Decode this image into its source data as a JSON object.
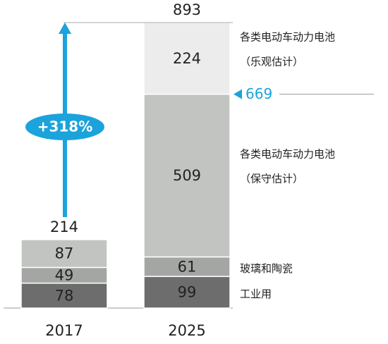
{
  "chart_data": {
    "type": "stacked-bar",
    "categories": [
      "2017",
      "2025"
    ],
    "series": [
      {
        "name": "工业用",
        "color": "#6d6d6d",
        "values": [
          78,
          99
        ]
      },
      {
        "name": "玻璃和陶瓷",
        "color": "#a3a6a3",
        "values": [
          49,
          61
        ]
      },
      {
        "name": "各类电动车动力电池",
        "note": "（保守估计）",
        "color": "#c1c4c1",
        "values": [
          87,
          509
        ]
      },
      {
        "name": "各类电动车动力电池",
        "note": "（乐观估计）",
        "color": "#ececec",
        "values": [
          null,
          224
        ]
      }
    ],
    "totals": [
      214,
      893
    ],
    "reference_value": 669,
    "growth_label": "+318%",
    "accent_color": "#1ba3dc",
    "ylim": [
      0,
      893
    ]
  }
}
